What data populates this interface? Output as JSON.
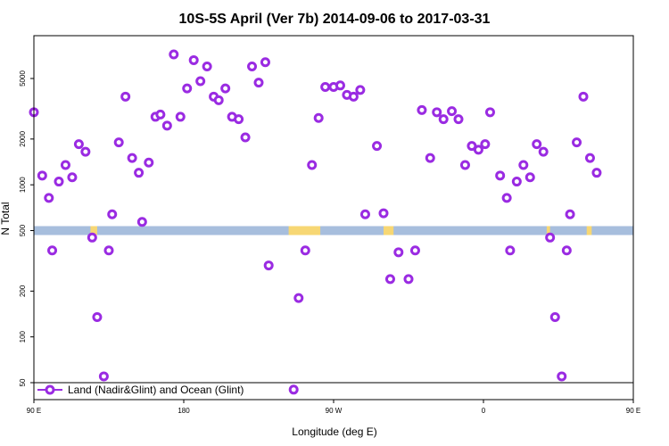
{
  "chart_data": {
    "type": "scatter",
    "title": "10S-5S April (Ver 7b)   2014-09-06 to 2017-03-31",
    "xlabel": "Longitude (deg E)",
    "ylabel": "N Total",
    "xlim": [
      90,
      450
    ],
    "ylim_log": [
      45,
      8000
    ],
    "y_scale": "log",
    "x_ticks": [
      {
        "value": 90,
        "label": "90 E"
      },
      {
        "value": 180,
        "label": "180"
      },
      {
        "value": 270,
        "label": "90 W"
      },
      {
        "value": 360,
        "label": "0"
      },
      {
        "value": 450,
        "label": "90 E"
      },
      {
        "value": 540,
        "label": "180"
      }
    ],
    "y_ticks": [
      {
        "value": 50,
        "label": "50"
      },
      {
        "value": 100,
        "label": "100"
      },
      {
        "value": 200,
        "label": "200"
      },
      {
        "value": 500,
        "label": "500"
      },
      {
        "value": 1000,
        "label": "1000"
      },
      {
        "value": 2000,
        "label": "2000"
      },
      {
        "value": 5000,
        "label": "5000"
      }
    ],
    "legend": {
      "position": "bottom-left"
    },
    "series": [
      {
        "name": "Land (Nadir&Glint) and Ocean (Glint)",
        "color": "#9a2be2",
        "points": [
          [
            90,
            3000
          ],
          [
            95,
            1150
          ],
          [
            99,
            820
          ],
          [
            101,
            370
          ],
          [
            105,
            1050
          ],
          [
            109,
            1350
          ],
          [
            113,
            1120
          ],
          [
            117,
            1850
          ],
          [
            121,
            1650
          ],
          [
            125,
            450
          ],
          [
            128,
            135
          ],
          [
            132,
            55
          ],
          [
            135,
            370
          ],
          [
            137,
            640
          ],
          [
            141,
            1900
          ],
          [
            145,
            3800
          ],
          [
            149,
            1500
          ],
          [
            153,
            1200
          ],
          [
            155,
            570
          ],
          [
            159,
            1400
          ],
          [
            163,
            2800
          ],
          [
            166,
            2900
          ],
          [
            170,
            2450
          ],
          [
            174,
            7200
          ],
          [
            178,
            2800
          ],
          [
            182,
            4300
          ],
          [
            186,
            6600
          ],
          [
            190,
            4800
          ],
          [
            194,
            6000
          ],
          [
            198,
            3800
          ],
          [
            201,
            3600
          ],
          [
            205,
            4300
          ],
          [
            209,
            2800
          ],
          [
            213,
            2700
          ],
          [
            217,
            2050
          ],
          [
            221,
            6000
          ],
          [
            225,
            4700
          ],
          [
            229,
            6400
          ],
          [
            231,
            295
          ],
          [
            246,
            45
          ],
          [
            249,
            180
          ],
          [
            253,
            370
          ],
          [
            257,
            1350
          ],
          [
            261,
            2750
          ],
          [
            265,
            4400
          ],
          [
            270,
            4400
          ],
          [
            274,
            4500
          ],
          [
            278,
            3900
          ],
          [
            282,
            3800
          ],
          [
            286,
            4200
          ],
          [
            289,
            640
          ],
          [
            296,
            1800
          ],
          [
            300,
            650
          ],
          [
            304,
            240
          ],
          [
            309,
            360
          ],
          [
            315,
            240
          ],
          [
            319,
            370
          ],
          [
            323,
            3100
          ],
          [
            328,
            1500
          ],
          [
            332,
            3000
          ],
          [
            336,
            2700
          ],
          [
            341,
            3050
          ],
          [
            345,
            2700
          ],
          [
            349,
            1350
          ],
          [
            353,
            1800
          ],
          [
            357,
            1700
          ],
          [
            361,
            1850
          ],
          [
            364,
            3000
          ],
          [
            370,
            1150
          ],
          [
            374,
            820
          ],
          [
            376,
            370
          ],
          [
            380,
            1050
          ],
          [
            384,
            1350
          ],
          [
            388,
            1120
          ],
          [
            392,
            1850
          ],
          [
            396,
            1650
          ],
          [
            400,
            450
          ],
          [
            403,
            135
          ],
          [
            407,
            55
          ],
          [
            410,
            370
          ],
          [
            412,
            640
          ],
          [
            416,
            1900
          ],
          [
            420,
            3800
          ],
          [
            424,
            1500
          ],
          [
            428,
            1200
          ]
        ]
      }
    ]
  }
}
